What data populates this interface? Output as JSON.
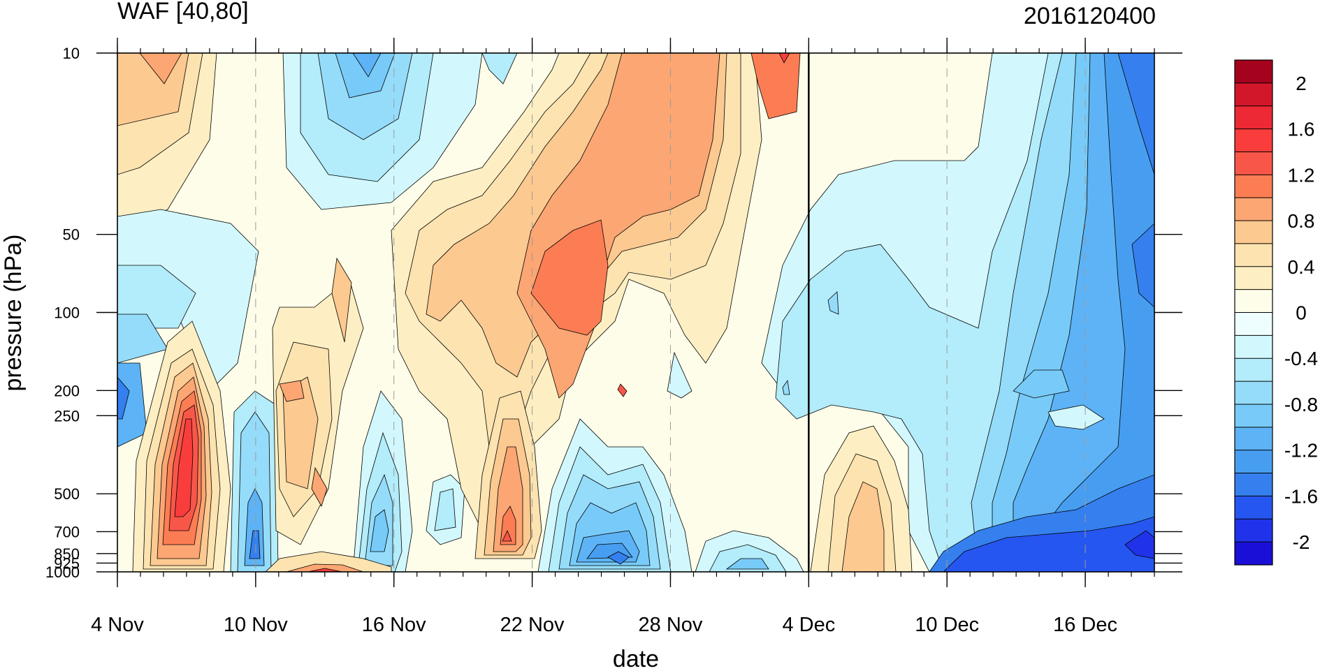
{
  "chart_data": {
    "type": "heatmap",
    "title_left": "WAF [40,80]",
    "title_right": "2016120400",
    "xlabel": "date",
    "ylabel": "pressure (hPa)",
    "x_tick_labels": [
      "4 Nov",
      "10 Nov",
      "16 Nov",
      "22 Nov",
      "28 Nov",
      "4 Dec",
      "10 Dec",
      "16 Dec"
    ],
    "x_range": [
      "2016-11-04",
      "2016-12-19"
    ],
    "y_scale": "log",
    "y_range": [
      1000,
      10
    ],
    "y_ticks": [
      {
        "value": 10,
        "label": "10"
      },
      {
        "value": 50,
        "label": "50"
      },
      {
        "value": 100,
        "label": "100"
      },
      {
        "value": 200,
        "label": "200"
      },
      {
        "value": 250,
        "label": "250"
      },
      {
        "value": 500,
        "label": "500"
      },
      {
        "value": 700,
        "label": "700"
      },
      {
        "value": 850,
        "label": "850"
      },
      {
        "value": 925,
        "label": "925"
      },
      {
        "value": 1000,
        "label": "1000"
      }
    ],
    "vertical_marker_date": "2016-12-04",
    "dashed_gridlines": "vertical, at each labeled date",
    "colorbar": {
      "levels": [
        -2.2,
        -2.0,
        -1.8,
        -1.6,
        -1.4,
        -1.2,
        -1.0,
        -0.8,
        -0.6,
        -0.4,
        -0.2,
        0,
        0.2,
        0.4,
        0.6,
        0.8,
        1.0,
        1.2,
        1.4,
        1.6,
        1.8,
        2.0,
        2.2
      ],
      "labels": [
        "2",
        "1.6",
        "1.2",
        "0.8",
        "0.4",
        "0",
        "-0.4",
        "-0.8",
        "-1.2",
        "-1.6",
        "-2"
      ],
      "colors_bottom_to_top": [
        "#1a0fd6",
        "#2033ea",
        "#2656f0",
        "#3580ee",
        "#479ef0",
        "#5db3f5",
        "#78cbf8",
        "#95dcfa",
        "#b3ecfb",
        "#d2f8fd",
        "#eefdfd",
        "#fefde9",
        "#fdefc3",
        "#fce3b0",
        "#fcc990",
        "#fba673",
        "#fc7d54",
        "#f9564a",
        "#f93d3c",
        "#ec2934",
        "#d3172b",
        "#a5031d"
      ]
    }
  }
}
